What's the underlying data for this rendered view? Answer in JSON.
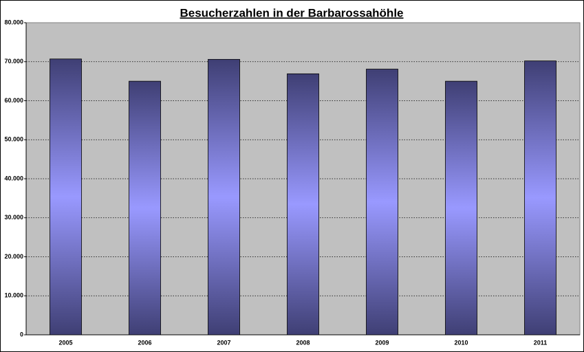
{
  "chart_data": {
    "type": "bar",
    "title": "Besucherzahlen in der Barbarossahöhle",
    "categories": [
      "2005",
      "2006",
      "2007",
      "2008",
      "2009",
      "2010",
      "2011"
    ],
    "values": [
      70700,
      65000,
      70600,
      66900,
      68100,
      65000,
      70200
    ],
    "color": "#9999ff",
    "ylim": [
      0,
      80000
    ],
    "yticks": [
      0,
      {
        "value": 10000,
        "label": "10.000"
      },
      {
        "value": 20000,
        "label": "20.000"
      },
      {
        "value": 30000,
        "label": "30.000"
      },
      {
        "value": 40000,
        "label": "40.000"
      },
      {
        "value": 50000,
        "label": "50.000"
      },
      {
        "value": 60000,
        "label": "60.000"
      },
      {
        "value": 70000,
        "label": "70.000"
      },
      {
        "value": 80000,
        "label": "80.000"
      }
    ],
    "grid": true
  }
}
